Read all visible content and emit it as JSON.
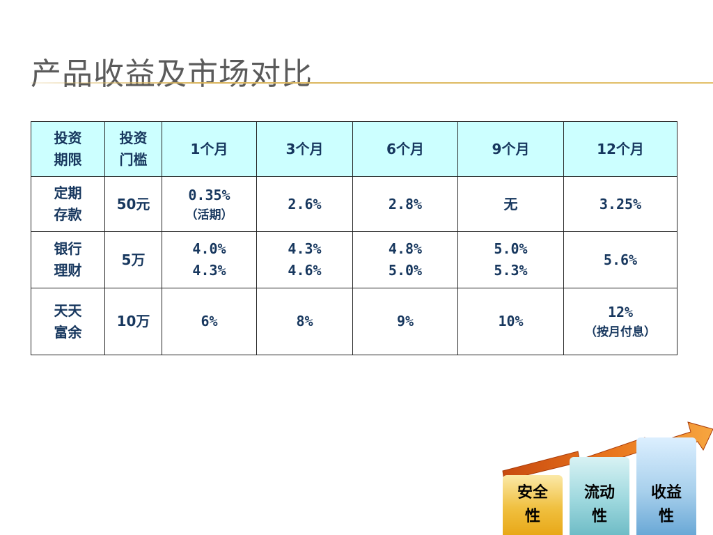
{
  "title": "产品收益及市场对比",
  "table": {
    "header": {
      "term_line1": "投资",
      "term_line2": "期限",
      "threshold_line1": "投资",
      "threshold_line2": "门槛",
      "periods": [
        "1个月",
        "3个月",
        "6个月",
        "9个月",
        "12个月"
      ]
    },
    "rows": [
      {
        "name_line1": "定期",
        "name_line2": "存款",
        "threshold": "50元",
        "m1": "0.35%",
        "m1_note": "（活期）",
        "m3": "2.6%",
        "m6": "2.8%",
        "m9": "无",
        "m12": "3.25%"
      },
      {
        "name_line1": "银行",
        "name_line2": "理财",
        "threshold": "5万",
        "m1_a": "4.0%",
        "m1_b": "4.3%",
        "m3_a": "4.3%",
        "m3_b": "4.6%",
        "m6_a": "4.8%",
        "m6_b": "5.0%",
        "m9_a": "5.0%",
        "m9_b": "5.3%",
        "m12": "5.6%"
      },
      {
        "name_line1": "天天",
        "name_line2": "富余",
        "threshold": "10万",
        "m1": "6%",
        "m3": "8%",
        "m6": "9%",
        "m9": "10%",
        "m12": "12%",
        "m12_note": "（按月付息）"
      }
    ]
  },
  "graphic": {
    "pillars": [
      {
        "line1": "安全",
        "line2": "性",
        "color": "#f0c040"
      },
      {
        "line1": "流动",
        "line2": "性",
        "color": "#9ed8de"
      },
      {
        "line1": "收益",
        "line2": "性",
        "color": "#a8d0ec"
      }
    ],
    "arrow_color": "#e07820"
  },
  "colors": {
    "header_bg": "#ccffff",
    "text_navy": "#17375e",
    "highlight_red": "#ff0000",
    "title_gray": "#5a5a5a",
    "rule_gold": "#d9b45b"
  }
}
